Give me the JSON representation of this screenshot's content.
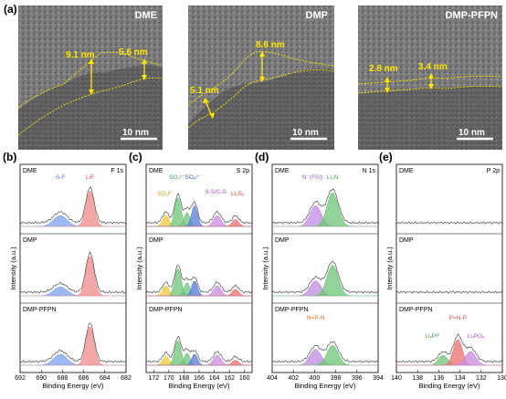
{
  "panel_a": {
    "label": "(a)",
    "images": [
      {
        "title": "DME",
        "measurements": [
          "9.1 nm",
          "5.6 nm"
        ],
        "scale": "10 nm"
      },
      {
        "title": "DMP",
        "measurements": [
          "8.6 nm",
          "5.1 nm"
        ],
        "scale": "10 nm"
      },
      {
        "title": "DMP-PFPN",
        "measurements": [
          "2.8 nm",
          "3.4 nm"
        ],
        "scale": "10 nm"
      }
    ]
  },
  "xps": {
    "ylabel": "Intensity (a.u.)",
    "xlabel": "Binding Energy (eV)",
    "samples": [
      "DME",
      "DMP",
      "DMP-PFPN"
    ]
  },
  "chart_data": [
    {
      "type": "line",
      "label": "(b)",
      "title": "F 1s",
      "xlim": [
        692,
        682
      ],
      "ticks": [
        "692",
        "690",
        "688",
        "686",
        "684",
        "682"
      ],
      "peak_labels_top": [
        {
          "text": "S-F",
          "x": 688.2,
          "color": "#4a73d9"
        },
        {
          "text": "LiF",
          "x": 685.4,
          "color": "#e05050"
        }
      ],
      "components": [
        {
          "center": 688.2,
          "height": [
            0.22,
            0.18,
            0.22
          ],
          "width": 0.9,
          "color": "#7da2ec"
        },
        {
          "center": 685.4,
          "height": [
            0.72,
            0.8,
            0.78
          ],
          "width": 0.55,
          "color": "#f08a8a"
        }
      ]
    },
    {
      "type": "line",
      "label": "(c)",
      "title": "S 2p",
      "xlim": [
        173,
        159
      ],
      "ticks": [
        "172",
        "170",
        "168",
        "166",
        "164",
        "162",
        "160"
      ],
      "peak_labels_top": [
        {
          "text": "SO₃²⁻",
          "x": 168.9,
          "color": "#3da04a"
        },
        {
          "text": "SO₄²⁻",
          "x": 166.8,
          "color": "#3a5fc8"
        },
        {
          "text": "S-S/C-S",
          "x": 163.8,
          "color": "#b34fc8"
        },
        {
          "text": "SO₂F",
          "x": 170.6,
          "color": "#d8a010"
        },
        {
          "text": "Li₂S₂",
          "x": 160.9,
          "color": "#d9403a"
        }
      ],
      "components": [
        {
          "center": 170.4,
          "height": [
            0.22,
            0.2,
            0.18
          ],
          "width": 0.6,
          "color": "#f2c83a"
        },
        {
          "center": 168.8,
          "height": [
            0.58,
            0.55,
            0.5
          ],
          "width": 0.6,
          "color": "#6cc475"
        },
        {
          "center": 167.6,
          "height": [
            0.28,
            0.26,
            0.24
          ],
          "width": 0.55,
          "color": "#6cc475"
        },
        {
          "center": 166.6,
          "height": [
            0.42,
            0.3,
            0.22
          ],
          "width": 0.55,
          "color": "#5779d8"
        },
        {
          "center": 163.6,
          "height": [
            0.22,
            0.2,
            0.2
          ],
          "width": 0.7,
          "color": "#c98be0"
        },
        {
          "center": 161.2,
          "height": [
            0.14,
            0.13,
            0.1
          ],
          "width": 0.6,
          "color": "#ea6d6d"
        }
      ]
    },
    {
      "type": "line",
      "label": "(d)",
      "title": "N 1s",
      "xlim": [
        404,
        394
      ],
      "ticks": [
        "404",
        "402",
        "400",
        "398",
        "396",
        "394"
      ],
      "peak_labels_top": [
        {
          "text": "N⁻(FSI)",
          "x": 400.2,
          "color": "#a25ad0"
        },
        {
          "text": "Li₃N",
          "x": 398.3,
          "color": "#3da04a"
        }
      ],
      "peak_labels_bottom": [
        {
          "text": "N=P-N",
          "x": 399.9,
          "color": "#e07020"
        }
      ],
      "components": [
        {
          "center": 399.9,
          "height": [
            0.42,
            0.3,
            0.32
          ],
          "width": 0.75,
          "color": "#c08ae0"
        },
        {
          "center": 398.3,
          "height": [
            0.68,
            0.62,
            0.4
          ],
          "width": 0.75,
          "color": "#6cc475"
        }
      ]
    },
    {
      "type": "line",
      "label": "(e)",
      "title": "P 2p",
      "xlim": [
        140,
        130
      ],
      "ticks": [
        "140",
        "138",
        "136",
        "134",
        "132",
        "130"
      ],
      "peak_labels_bottom": [
        {
          "text": "P=N-P",
          "x": 134.2,
          "color": "#e05050"
        },
        {
          "text": "LiₓPF",
          "x": 136.6,
          "color": "#3da04a"
        },
        {
          "text": "LiₓPOᵧ",
          "x": 132.5,
          "color": "#a25ad0"
        }
      ],
      "components": [
        {
          "center": 135.6,
          "height": [
            0,
            0,
            0.2
          ],
          "width": 0.6,
          "color": "#6cc475"
        },
        {
          "center": 134.2,
          "height": [
            0,
            0,
            0.52
          ],
          "width": 0.6,
          "color": "#ea6d6d"
        },
        {
          "center": 133.0,
          "height": [
            0,
            0,
            0.28
          ],
          "width": 0.7,
          "color": "#c98be0"
        }
      ]
    }
  ]
}
